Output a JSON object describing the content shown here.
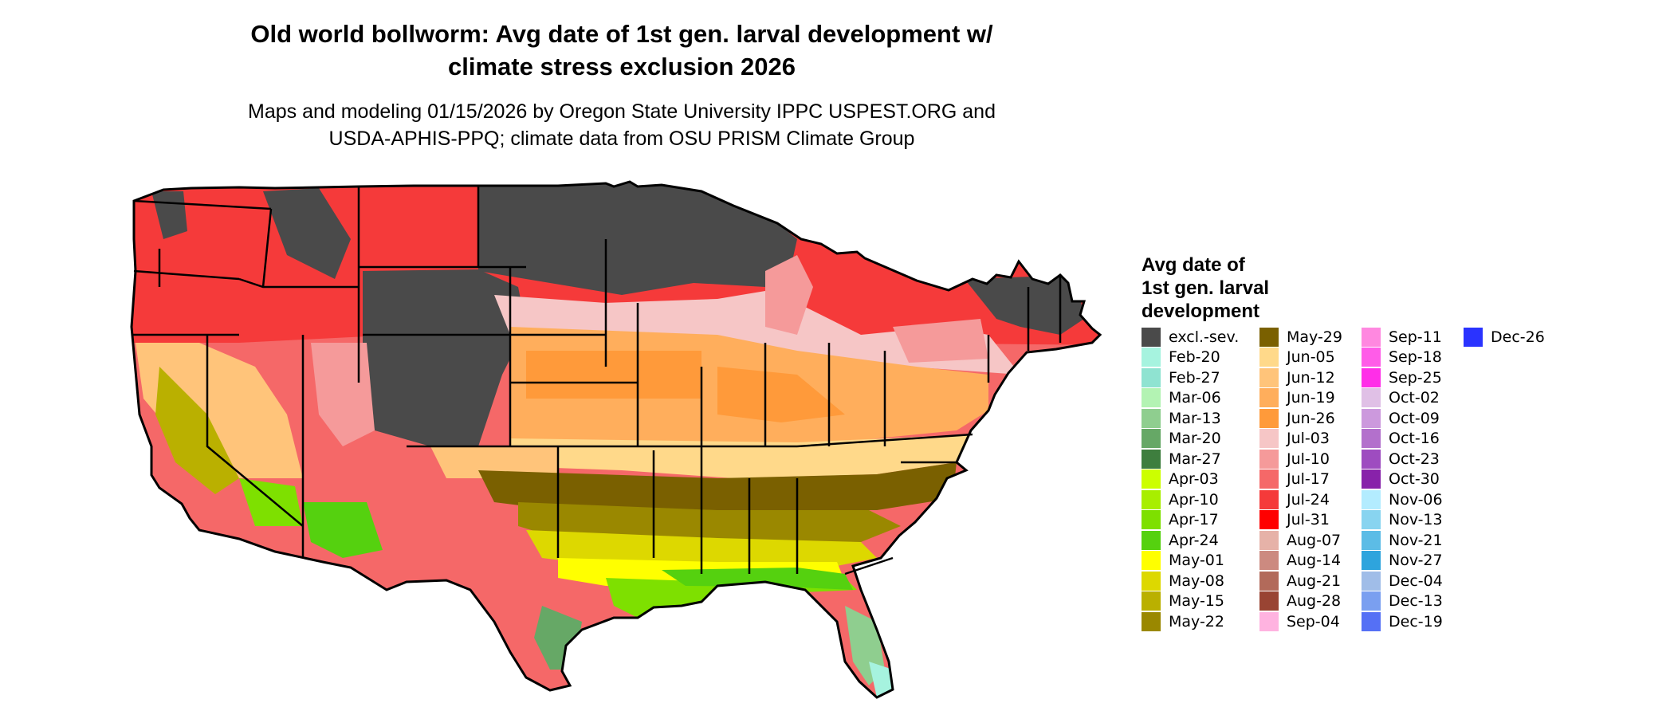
{
  "title_line1": "Old world bollworm: Avg date of 1st gen. larval development w/",
  "title_line2": "climate stress exclusion 2026",
  "subtitle_line1": "Maps and modeling 01/15/2026 by Oregon State University IPPC USPEST.ORG and",
  "subtitle_line2": "USDA-APHIS-PPQ; climate data from OSU PRISM Climate Group",
  "legend": {
    "title_line1": "Avg date of",
    "title_line2": "1st gen. larval",
    "title_line3": "development",
    "items": [
      {
        "label": "excl.-sev.",
        "color": "#4a4a4a"
      },
      {
        "label": "Feb-20",
        "color": "#a6f3df"
      },
      {
        "label": "Feb-27",
        "color": "#8fe3d1"
      },
      {
        "label": "Mar-06",
        "color": "#b3f3b3"
      },
      {
        "label": "Mar-13",
        "color": "#8fce8f"
      },
      {
        "label": "Mar-20",
        "color": "#66a866"
      },
      {
        "label": "Mar-27",
        "color": "#3e7e3e"
      },
      {
        "label": "Apr-03",
        "color": "#ccff00"
      },
      {
        "label": "Apr-10",
        "color": "#a8ee00"
      },
      {
        "label": "Apr-17",
        "color": "#7ee000"
      },
      {
        "label": "Apr-24",
        "color": "#55d10f"
      },
      {
        "label": "May-01",
        "color": "#ffff00"
      },
      {
        "label": "May-08",
        "color": "#ddd800"
      },
      {
        "label": "May-15",
        "color": "#bab000"
      },
      {
        "label": "May-22",
        "color": "#9a8800"
      },
      {
        "label": "May-29",
        "color": "#7a6000"
      },
      {
        "label": "Jun-05",
        "color": "#ffd98a"
      },
      {
        "label": "Jun-12",
        "color": "#ffc47a"
      },
      {
        "label": "Jun-19",
        "color": "#ffae5c"
      },
      {
        "label": "Jun-26",
        "color": "#ff9a3a"
      },
      {
        "label": "Jul-03",
        "color": "#f6c6c6"
      },
      {
        "label": "Jul-10",
        "color": "#f59a9a"
      },
      {
        "label": "Jul-17",
        "color": "#f56868"
      },
      {
        "label": "Jul-24",
        "color": "#f53a3a"
      },
      {
        "label": "Jul-31",
        "color": "#ff0000"
      },
      {
        "label": "Aug-07",
        "color": "#e6b2a8"
      },
      {
        "label": "Aug-14",
        "color": "#cc8a80"
      },
      {
        "label": "Aug-21",
        "color": "#b26a5a"
      },
      {
        "label": "Aug-28",
        "color": "#994433"
      },
      {
        "label": "Sep-04",
        "color": "#ffb3e0"
      },
      {
        "label": "Sep-11",
        "color": "#ff88e0"
      },
      {
        "label": "Sep-18",
        "color": "#ff5ce8"
      },
      {
        "label": "Sep-25",
        "color": "#ff2ee8"
      },
      {
        "label": "Oct-02",
        "color": "#e0c0e6"
      },
      {
        "label": "Oct-09",
        "color": "#cc99dd"
      },
      {
        "label": "Oct-16",
        "color": "#b370cc"
      },
      {
        "label": "Oct-23",
        "color": "#9e4cc0"
      },
      {
        "label": "Oct-30",
        "color": "#8822aa"
      },
      {
        "label": "Nov-06",
        "color": "#b3ecff"
      },
      {
        "label": "Nov-13",
        "color": "#88d4f0"
      },
      {
        "label": "Nov-21",
        "color": "#5cbce6"
      },
      {
        "label": "Nov-27",
        "color": "#2ea4dd"
      },
      {
        "label": "Dec-04",
        "color": "#a0bde8"
      },
      {
        "label": "Dec-13",
        "color": "#7a9ff0"
      },
      {
        "label": "Dec-19",
        "color": "#5570f5"
      },
      {
        "label": "Dec-26",
        "color": "#2a33ff"
      }
    ]
  }
}
